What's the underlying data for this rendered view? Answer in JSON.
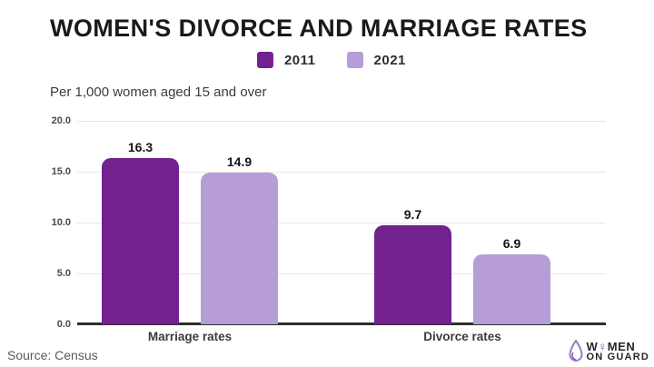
{
  "header": {
    "title": "WOMEN'S DIVORCE AND MARRIAGE RATES",
    "subtitle": "Per 1,000 women aged 15 and over"
  },
  "chart_data": {
    "type": "bar",
    "title": "WOMEN'S DIVORCE AND MARRIAGE RATES",
    "units_note": "Per 1,000 women aged 15 and over",
    "categories": [
      "Marriage rates",
      "Divorce rates"
    ],
    "series": [
      {
        "name": "2011",
        "values": [
          16.3,
          9.7
        ],
        "color": "#72218F"
      },
      {
        "name": "2021",
        "values": [
          14.9,
          6.9
        ],
        "color": "#B69DD8"
      }
    ],
    "xlabel": "",
    "ylabel": "",
    "ylim": [
      0,
      20
    ],
    "y_ticks": [
      "20.0",
      "15.0",
      "10.0",
      "5.0",
      "0.0"
    ],
    "grid": true,
    "legend_position": "top"
  },
  "footer": {
    "source": "Source: Census"
  },
  "brand": {
    "icon": "drop-icon",
    "line1_pre": "W",
    "line1_symbol": "♀",
    "line1_post": "MEN",
    "line2": "ON GUARD",
    "accent": "#8A4FBE"
  },
  "colors": {
    "series_2011": "#72218F",
    "series_2021": "#B69DD8",
    "axis": "#2e2e2e",
    "gridline": "#e7e7e7"
  }
}
